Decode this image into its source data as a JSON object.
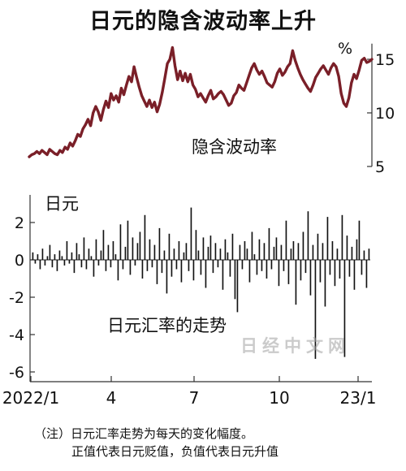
{
  "title": "日元的隐含波动率上升",
  "chart_data": [
    {
      "type": "line",
      "label": "隐含波动率",
      "unit": "%",
      "color": "#7a1f28",
      "ylim": [
        5,
        16
      ],
      "yticks": [
        5,
        10,
        15
      ],
      "x_range": [
        "2022/1",
        "2023/1"
      ],
      "series": [
        {
          "values": [
            5.9,
            6.1,
            6.2,
            6.4,
            6.2,
            6.5,
            6.3,
            6.1,
            6.6,
            6.4,
            6.2,
            6.1,
            6.5,
            6.3,
            6.8,
            6.6,
            7.2,
            6.9,
            7.4,
            8.0,
            7.8,
            8.5,
            8.9,
            9.4,
            8.8,
            10.0,
            10.6,
            10.1,
            9.3,
            10.3,
            11.1,
            10.5,
            11.8,
            11.2,
            11.6,
            11.0,
            12.3,
            11.7,
            12.6,
            13.4,
            12.9,
            14.3,
            13.3,
            12.4,
            11.6,
            11.1,
            10.6,
            11.2,
            10.5,
            11.0,
            10.1,
            10.8,
            11.9,
            13.2,
            14.6,
            15.0,
            16.1,
            14.4,
            13.1,
            13.9,
            13.0,
            13.7,
            12.9,
            13.6,
            12.6,
            12.2,
            11.5,
            11.8,
            11.4,
            11.0,
            11.6,
            12.1,
            11.3,
            11.5,
            11.8,
            12.0,
            11.7,
            11.2,
            10.7,
            10.9,
            11.6,
            11.9,
            12.6,
            12.3,
            12.1,
            12.8,
            13.5,
            14.2,
            14.6,
            14.0,
            13.6,
            13.9,
            13.4,
            12.8,
            12.6,
            12.4,
            12.9,
            13.7,
            14.1,
            13.5,
            13.8,
            14.3,
            14.6,
            15.8,
            14.9,
            14.2,
            13.6,
            13.1,
            12.7,
            12.3,
            12.0,
            12.6,
            13.3,
            13.7,
            14.1,
            14.4,
            14.0,
            13.6,
            14.2,
            14.6,
            14.3,
            13.4,
            11.8,
            10.9,
            10.6,
            11.4,
            12.8,
            13.6,
            13.2,
            14.0,
            14.9,
            15.1,
            14.7,
            14.8,
            15.0
          ]
        }
      ]
    },
    {
      "type": "bar",
      "label": "日元汇率的走势",
      "series_label": "日元",
      "color": "#111111",
      "ylim": [
        -6.5,
        3.2
      ],
      "yticks": [
        2,
        0,
        -2,
        -4,
        -6
      ],
      "xticks": [
        "2022/1",
        "4",
        "7",
        "10",
        "23/1"
      ],
      "series": [
        {
          "values": [
            0.4,
            -0.2,
            0.3,
            -0.5,
            0.6,
            -0.3,
            0.2,
            0.8,
            -0.4,
            0.3,
            -0.6,
            0.5,
            0.2,
            -0.3,
            1.0,
            -0.2,
            0.4,
            -0.7,
            0.9,
            0.3,
            -0.4,
            1.2,
            -0.5,
            0.6,
            0.2,
            -0.9,
            1.1,
            -0.3,
            0.5,
            1.6,
            -0.6,
            0.8,
            -0.4,
            1.0,
            0.3,
            -1.1,
            1.9,
            -0.5,
            0.7,
            2.1,
            -0.8,
            1.2,
            -0.3,
            0.9,
            1.5,
            -1.0,
            2.4,
            -0.6,
            1.1,
            -0.4,
            0.8,
            -1.3,
            1.7,
            -0.7,
            0.5,
            -1.8,
            1.4,
            -0.9,
            0.6,
            -0.5,
            1.0,
            -1.2,
            0.4,
            0.9,
            -0.6,
            2.8,
            -1.1,
            1.6,
            0.5,
            -0.8,
            1.2,
            -1.5,
            0.7,
            1.3,
            -0.7,
            0.9,
            -0.4,
            0.6,
            -1.6,
            1.1,
            0.4,
            -0.9,
            1.4,
            -2.1,
            -2.8,
            0.8,
            -0.5,
            1.0,
            0.6,
            -1.2,
            1.5,
            0.3,
            -0.8,
            1.1,
            -0.6,
            0.9,
            -1.0,
            1.7,
            -0.5,
            0.7,
            1.2,
            -1.4,
            0.8,
            -0.6,
            2.1,
            -1.3,
            0.6,
            1.0,
            -2.4,
            0.9,
            -1.1,
            1.5,
            -0.7,
            2.6,
            -1.9,
            0.8,
            -5.3,
            1.4,
            -1.2,
            0.9,
            -2.5,
            2.3,
            -0.8,
            1.0,
            -1.4,
            0.6,
            -1.0,
            2.4,
            -5.2,
            1.3,
            -0.9,
            0.7,
            -1.6,
            1.1,
            2.1,
            -0.8,
            0.5,
            -1.5,
            0.6
          ]
        }
      ]
    }
  ],
  "notes": {
    "line1": "（注）日元汇率走势为每天的变化幅度。",
    "line2": "正值代表日元贬值，负值代表日元升值"
  },
  "watermark": "日经中文网"
}
